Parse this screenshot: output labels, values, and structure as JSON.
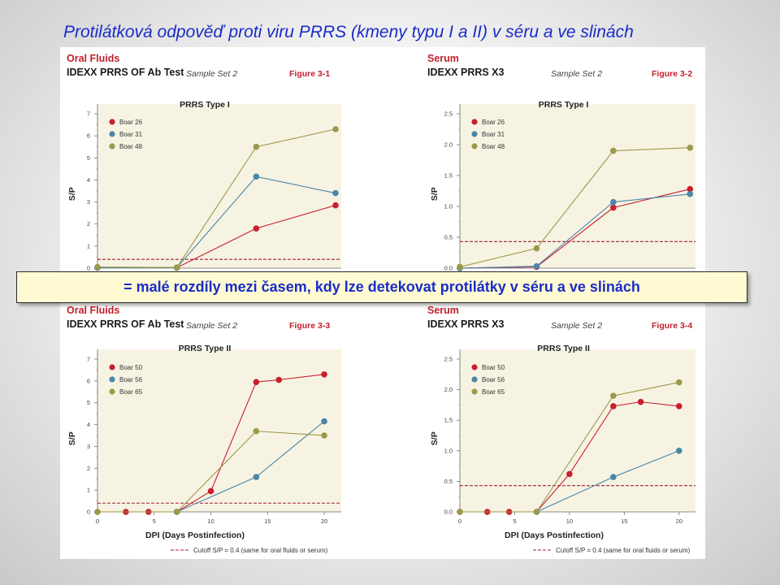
{
  "slide": {
    "title": "Protilátková odpověď proti viru PRRS (kmeny typu I a II) v séru a ve slinách",
    "callout": "= malé rozdíly mezi časem, kdy lze detekovat protilátky v séru a ve slinách"
  },
  "colors": {
    "series_red": "#c8202e",
    "series_blue": "#4a87a6",
    "series_olive": "#9a9a4a",
    "plot_bg": "#f7f3e3",
    "cutoff": "#a02030",
    "accent_title": "#1a2cc8"
  },
  "chart_data": [
    {
      "id": "fig-3-1",
      "type": "line",
      "header": {
        "source": "Oral Fluids",
        "test": "IDEXX PRRS OF Ab Test",
        "sample_set": "Sample Set 2",
        "figure": "Figure 3-1"
      },
      "title": "PRRS Type I",
      "ylabel": "S/P",
      "xlabel": "",
      "ylim": [
        0,
        7
      ],
      "yticks": [
        0,
        1,
        2,
        3,
        4,
        5,
        6,
        7
      ],
      "xlim": [
        0,
        21.5
      ],
      "xticks": [],
      "cutoff": 0.4,
      "legend_position": "top-left",
      "series": [
        {
          "name": "Boar 26",
          "color": "#c8202e",
          "x": [
            0,
            7,
            14,
            21
          ],
          "y": [
            0.02,
            0.02,
            1.8,
            2.85
          ]
        },
        {
          "name": "Boar 31",
          "color": "#4a87a6",
          "x": [
            0,
            7,
            14,
            21
          ],
          "y": [
            0.02,
            0.02,
            4.15,
            3.4
          ]
        },
        {
          "name": "Boar 48",
          "color": "#9a9a4a",
          "x": [
            0,
            7,
            14,
            21
          ],
          "y": [
            0.05,
            0.03,
            5.5,
            6.3
          ]
        }
      ]
    },
    {
      "id": "fig-3-2",
      "type": "line",
      "header": {
        "source": "Serum",
        "test": "IDEXX PRRS X3",
        "sample_set": "Sample Set 2",
        "figure": "Figure 3-2"
      },
      "title": "PRRS Type I",
      "ylabel": "S/P",
      "xlabel": "",
      "ylim": [
        0,
        2.5
      ],
      "yticks": [
        0.0,
        0.5,
        1.0,
        1.5,
        2.0,
        2.5
      ],
      "ytick_labels": [
        "0.0",
        "0.5",
        "1.0",
        "1.5",
        "2.0",
        "2.5"
      ],
      "xlim": [
        0,
        21.5
      ],
      "xticks": [],
      "cutoff": 0.43,
      "legend_position": "top-left",
      "series": [
        {
          "name": "Boar 26",
          "color": "#c8202e",
          "x": [
            0,
            7,
            14,
            21
          ],
          "y": [
            0.0,
            0.02,
            0.98,
            1.28
          ]
        },
        {
          "name": "Boar 31",
          "color": "#4a87a6",
          "x": [
            0,
            7,
            14,
            21
          ],
          "y": [
            0.0,
            0.03,
            1.07,
            1.2
          ]
        },
        {
          "name": "Boar 48",
          "color": "#9a9a4a",
          "x": [
            0,
            7,
            14,
            21
          ],
          "y": [
            0.02,
            0.32,
            1.9,
            1.95
          ]
        }
      ]
    },
    {
      "id": "fig-3-3",
      "type": "line",
      "header": {
        "source": "Oral Fluids",
        "test": "IDEXX PRRS OF Ab Test",
        "sample_set": "Sample Set 2",
        "figure": "Figure 3-3"
      },
      "title": "PRRS Type II",
      "ylabel": "S/P",
      "xlabel": "DPI (Days Postinfection)",
      "ylim": [
        0,
        7
      ],
      "yticks": [
        0,
        1,
        2,
        3,
        4,
        5,
        6,
        7
      ],
      "xlim": [
        0,
        21.5
      ],
      "xticks": [
        0,
        5,
        10,
        15,
        20
      ],
      "cutoff": 0.4,
      "legend_position": "top-left",
      "footnote": "Cutoff S/P = 0.4 (same for oral fluids or serum)",
      "series": [
        {
          "name": "Boar 50",
          "color": "#c8202e",
          "x": [
            0,
            2.5,
            4.5,
            7,
            10,
            14,
            16,
            20
          ],
          "y": [
            0,
            0,
            0,
            0,
            0.95,
            5.95,
            6.05,
            6.3
          ]
        },
        {
          "name": "Boar 56",
          "color": "#4a87a6",
          "x": [
            7,
            14,
            20
          ],
          "y": [
            0,
            1.6,
            4.15
          ]
        },
        {
          "name": "Boar 65",
          "color": "#9a9a4a",
          "x": [
            0,
            7,
            14,
            20
          ],
          "y": [
            0,
            0,
            3.7,
            3.5
          ]
        }
      ]
    },
    {
      "id": "fig-3-4",
      "type": "line",
      "header": {
        "source": "Serum",
        "test": "IDEXX PRRS X3",
        "sample_set": "Sample Set 2",
        "figure": "Figure 3-4"
      },
      "title": "PRRS Type II",
      "ylabel": "S/P",
      "xlabel": "DPI (Days Postinfection)",
      "ylim": [
        0,
        2.5
      ],
      "yticks": [
        0.0,
        0.5,
        1.0,
        1.5,
        2.0,
        2.5
      ],
      "ytick_labels": [
        "0.0",
        "0.5",
        "1.0",
        "1.5",
        "2.0",
        "2.5"
      ],
      "xlim": [
        0,
        21.5
      ],
      "xticks": [
        0,
        5,
        10,
        15,
        20
      ],
      "cutoff": 0.43,
      "legend_position": "top-left",
      "footnote": "Cutoff S/P = 0.4 (same for oral fluids or serum)",
      "series": [
        {
          "name": "Boar 50",
          "color": "#c8202e",
          "x": [
            0,
            2.5,
            4.5,
            7,
            10,
            14,
            16.5,
            20
          ],
          "y": [
            0,
            0,
            0,
            0,
            0.62,
            1.73,
            1.8,
            1.73
          ]
        },
        {
          "name": "Boar 56",
          "color": "#4a87a6",
          "x": [
            7,
            14,
            20
          ],
          "y": [
            0,
            0.57,
            1.0
          ]
        },
        {
          "name": "Boar 65",
          "color": "#9a9a4a",
          "x": [
            0,
            7,
            14,
            20
          ],
          "y": [
            0,
            0,
            1.9,
            2.12
          ]
        }
      ]
    }
  ]
}
